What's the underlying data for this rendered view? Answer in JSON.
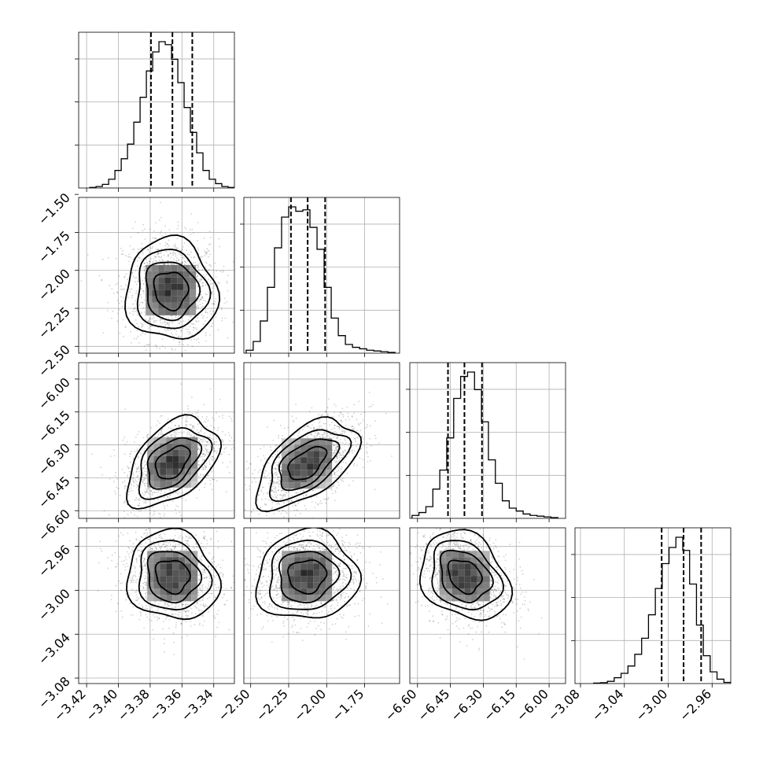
{
  "chart_data": {
    "type": "corner",
    "description_free": true,
    "parameters": [
      {
        "ticks": [
          "−3.42",
          "−3.40",
          "−3.38",
          "−3.36",
          "−3.34"
        ],
        "tick_values": [
          -3.42,
          -3.4,
          -3.38,
          -3.36,
          -3.34
        ],
        "range": [
          -3.425,
          -3.327
        ],
        "quantiles": [
          -3.3795,
          -3.366,
          -3.3535
        ],
        "hist": [
          0.004,
          0.01,
          0.025,
          0.06,
          0.12,
          0.2,
          0.3,
          0.45,
          0.62,
          0.8,
          0.93,
          1.0,
          0.98,
          0.88,
          0.72,
          0.55,
          0.38,
          0.24,
          0.12,
          0.06,
          0.03,
          0.01,
          0.004
        ],
        "hist_range": [
          -3.418,
          -3.327
        ]
      },
      {
        "ticks": [
          "−2.50",
          "−2.25",
          "−2.00",
          "−1.75",
          "−1.50"
        ],
        "tick_values": [
          -2.5,
          -2.25,
          -2.0,
          -1.75,
          -1.5
        ],
        "range": [
          -2.545,
          -1.52
        ],
        "quantiles": [
          -2.235,
          -2.125,
          -2.01
        ],
        "hist": [
          0.02,
          0.08,
          0.22,
          0.45,
          0.72,
          0.93,
          1.0,
          0.97,
          0.98,
          0.86,
          0.71,
          0.45,
          0.24,
          0.12,
          0.06,
          0.04,
          0.03,
          0.02,
          0.015,
          0.01,
          0.005
        ],
        "hist_range": [
          -2.53,
          -1.55
        ]
      },
      {
        "ticks": [
          "−6.60",
          "−6.45",
          "−6.30",
          "−6.15",
          "−6.00"
        ],
        "tick_values": [
          -6.6,
          -6.45,
          -6.3,
          -6.15,
          -6.0
        ],
        "range": [
          -6.635,
          -5.925
        ],
        "quantiles": [
          -6.461,
          -6.386,
          -6.306
        ],
        "hist": [
          0.02,
          0.04,
          0.08,
          0.2,
          0.33,
          0.55,
          0.82,
          0.97,
          1.0,
          0.88,
          0.66,
          0.4,
          0.24,
          0.12,
          0.07,
          0.05,
          0.03,
          0.02,
          0.015,
          0.01,
          0.005
        ],
        "hist_range": [
          -6.625,
          -5.96
        ]
      },
      {
        "ticks": [
          "−3.08",
          "−3.04",
          "−3.00",
          "−2.96"
        ],
        "tick_values": [
          -3.08,
          -3.04,
          -3.0,
          -2.96
        ],
        "range": [
          -3.085,
          -2.943
        ],
        "quantiles": [
          -3.006,
          -2.986,
          -2.97
        ],
        "hist": [
          0.003,
          0.006,
          0.015,
          0.04,
          0.07,
          0.12,
          0.2,
          0.31,
          0.47,
          0.65,
          0.82,
          0.93,
          1.0,
          0.91,
          0.68,
          0.4,
          0.19,
          0.08,
          0.03,
          0.008
        ],
        "hist_range": [
          -3.068,
          -2.943
        ]
      }
    ],
    "pairs": [
      {
        "x": 0,
        "y": 1,
        "center": [
          -3.367,
          -2.13
        ],
        "sigma": [
          0.012,
          0.14
        ],
        "rho": -0.05
      },
      {
        "x": 0,
        "y": 2,
        "center": [
          -3.366,
          -6.38
        ],
        "sigma": [
          0.012,
          0.085
        ],
        "rho": 0.45
      },
      {
        "x": 0,
        "y": 3,
        "center": [
          -3.366,
          -2.987
        ],
        "sigma": [
          0.012,
          0.017
        ],
        "rho": -0.1
      },
      {
        "x": 1,
        "y": 2,
        "center": [
          -2.13,
          -6.385
        ],
        "sigma": [
          0.14,
          0.085
        ],
        "rho": 0.55
      },
      {
        "x": 1,
        "y": 3,
        "center": [
          -2.13,
          -2.987
        ],
        "sigma": [
          0.14,
          0.017
        ],
        "rho": 0.05
      },
      {
        "x": 2,
        "y": 3,
        "center": [
          -6.385,
          -2.987
        ],
        "sigma": [
          0.085,
          0.017
        ],
        "rho": -0.25
      }
    ],
    "grid": true,
    "colors": {
      "points": "#000000",
      "contour": "#000000",
      "grid": "#b0b0b0"
    }
  }
}
